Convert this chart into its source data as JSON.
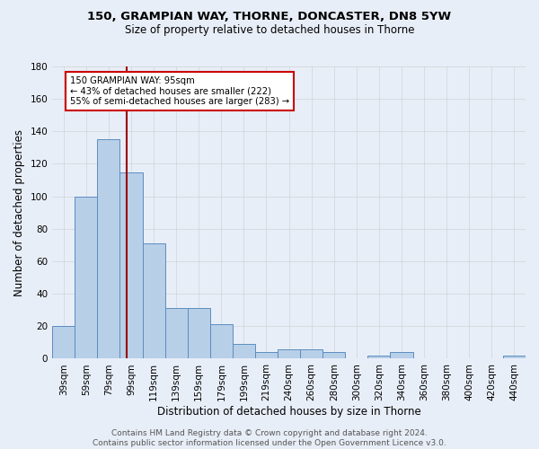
{
  "title1": "150, GRAMPIAN WAY, THORNE, DONCASTER, DN8 5YW",
  "title2": "Size of property relative to detached houses in Thorne",
  "xlabel": "Distribution of detached houses by size in Thorne",
  "ylabel": "Number of detached properties",
  "bar_labels": [
    "39sqm",
    "59sqm",
    "79sqm",
    "99sqm",
    "119sqm",
    "139sqm",
    "159sqm",
    "179sqm",
    "199sqm",
    "219sqm",
    "240sqm",
    "260sqm",
    "280sqm",
    "300sqm",
    "320sqm",
    "340sqm",
    "360sqm",
    "380sqm",
    "400sqm",
    "420sqm",
    "440sqm"
  ],
  "bar_heights": [
    20,
    100,
    135,
    115,
    71,
    31,
    31,
    21,
    9,
    4,
    6,
    6,
    4,
    0,
    2,
    4,
    0,
    0,
    0,
    0,
    2
  ],
  "bar_color": "#b8cfe8",
  "bar_edge_color": "#5b8dc0",
  "vline_color": "#990000",
  "vline_x_index": 2.8,
  "ylim": [
    0,
    180
  ],
  "yticks": [
    0,
    20,
    40,
    60,
    80,
    100,
    120,
    140,
    160,
    180
  ],
  "annotation_line1": "150 GRAMPIAN WAY: 95sqm",
  "annotation_line2": "← 43% of detached houses are smaller (222)",
  "annotation_line3": "55% of semi-detached houses are larger (283) →",
  "annotation_box_color": "#ffffff",
  "annotation_border_color": "#cc0000",
  "footer_text": "Contains HM Land Registry data © Crown copyright and database right 2024.\nContains public sector information licensed under the Open Government Licence v3.0.",
  "background_color": "#e8eef8",
  "plot_bg_color": "#e8eef8",
  "grid_color": "#cccccc",
  "title1_fontsize": 9.5,
  "title2_fontsize": 8.5,
  "xlabel_fontsize": 8.5,
  "ylabel_fontsize": 8.5,
  "tick_fontsize": 7.5,
  "footer_fontsize": 6.5
}
